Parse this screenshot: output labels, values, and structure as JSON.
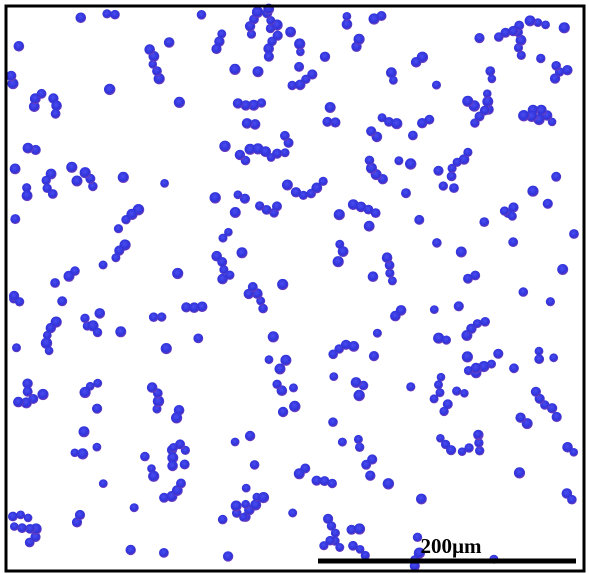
{
  "scale_bar": {
    "label": "200µm"
  }
}
